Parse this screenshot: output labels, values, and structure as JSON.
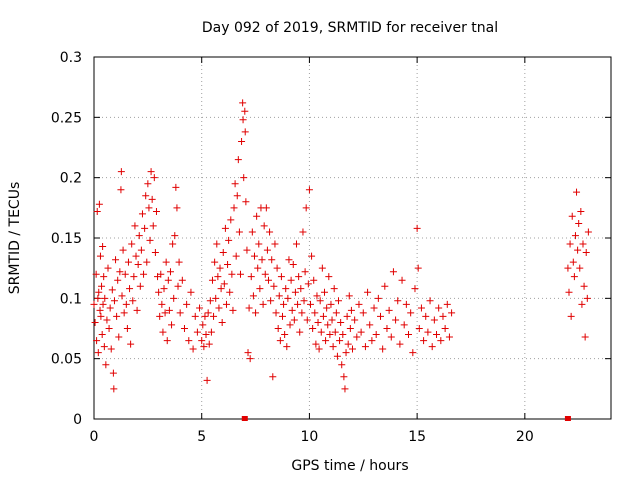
{
  "chart_data": {
    "type": "scatter",
    "title": "Day 092 of 2019, SRMTID for receiver tnal",
    "xlabel": "GPS time / hours",
    "ylabel": "SRMTID / TECUs",
    "xlim": [
      0,
      24
    ],
    "ylim": [
      0,
      0.3
    ],
    "xticks": [
      0,
      5,
      10,
      15,
      20
    ],
    "yticks": [
      0,
      0.05,
      0.1,
      0.15,
      0.2,
      0.25,
      0.3
    ],
    "xtick_labels": [
      "0",
      "5",
      "10",
      "15",
      "20"
    ],
    "ytick_labels": [
      "0",
      "0.05",
      "0.1",
      "0.15",
      "0.2",
      "0.25",
      "0.3"
    ],
    "grid": true,
    "marker": "+",
    "color": "#e00000",
    "series": [
      {
        "points": [
          [
            0.0,
            0.095
          ],
          [
            0.05,
            0.08
          ],
          [
            0.1,
            0.12
          ],
          [
            0.12,
            0.065
          ],
          [
            0.15,
            0.172
          ],
          [
            0.18,
            0.1
          ],
          [
            0.2,
            0.055
          ],
          [
            0.22,
            0.105
          ],
          [
            0.25,
            0.178
          ],
          [
            0.28,
            0.09
          ],
          [
            0.3,
            0.135
          ],
          [
            0.32,
            0.085
          ],
          [
            0.35,
            0.11
          ],
          [
            0.38,
            0.07
          ],
          [
            0.4,
            0.143
          ],
          [
            0.42,
            0.095
          ],
          [
            0.45,
            0.118
          ],
          [
            0.48,
            0.06
          ],
          [
            0.5,
            0.1
          ],
          [
            0.55,
            0.045
          ],
          [
            0.6,
            0.082
          ],
          [
            0.65,
            0.125
          ],
          [
            0.7,
            0.075
          ],
          [
            0.75,
            0.092
          ],
          [
            0.8,
            0.058
          ],
          [
            0.85,
            0.107
          ],
          [
            0.9,
            0.038
          ],
          [
            0.92,
            0.025
          ],
          [
            0.95,
            0.098
          ],
          [
            1.0,
            0.132
          ],
          [
            1.05,
            0.085
          ],
          [
            1.1,
            0.115
          ],
          [
            1.15,
            0.068
          ],
          [
            1.2,
            0.122
          ],
          [
            1.25,
            0.19
          ],
          [
            1.27,
            0.205
          ],
          [
            1.3,
            0.102
          ],
          [
            1.35,
            0.14
          ],
          [
            1.4,
            0.088
          ],
          [
            1.45,
            0.12
          ],
          [
            1.5,
            0.095
          ],
          [
            1.55,
            0.075
          ],
          [
            1.6,
            0.13
          ],
          [
            1.65,
            0.108
          ],
          [
            1.7,
            0.062
          ],
          [
            1.75,
            0.145
          ],
          [
            1.8,
            0.098
          ],
          [
            1.85,
            0.118
          ],
          [
            1.9,
            0.16
          ],
          [
            1.95,
            0.135
          ],
          [
            2.0,
            0.09
          ],
          [
            2.05,
            0.128
          ],
          [
            2.1,
            0.152
          ],
          [
            2.15,
            0.11
          ],
          [
            2.2,
            0.14
          ],
          [
            2.25,
            0.17
          ],
          [
            2.3,
            0.12
          ],
          [
            2.35,
            0.158
          ],
          [
            2.4,
            0.185
          ],
          [
            2.45,
            0.13
          ],
          [
            2.5,
            0.195
          ],
          [
            2.55,
            0.175
          ],
          [
            2.6,
            0.148
          ],
          [
            2.65,
            0.205
          ],
          [
            2.7,
            0.182
          ],
          [
            2.75,
            0.16
          ],
          [
            2.8,
            0.2
          ],
          [
            2.85,
            0.138
          ],
          [
            2.9,
            0.172
          ],
          [
            2.95,
            0.118
          ],
          [
            3.0,
            0.105
          ],
          [
            3.05,
            0.085
          ],
          [
            3.1,
            0.12
          ],
          [
            3.15,
            0.095
          ],
          [
            3.2,
            0.072
          ],
          [
            3.25,
            0.108
          ],
          [
            3.3,
            0.088
          ],
          [
            3.35,
            0.13
          ],
          [
            3.4,
            0.065
          ],
          [
            3.45,
            0.115
          ],
          [
            3.5,
            0.09
          ],
          [
            3.55,
            0.122
          ],
          [
            3.6,
            0.078
          ],
          [
            3.65,
            0.145
          ],
          [
            3.7,
            0.1
          ],
          [
            3.75,
            0.152
          ],
          [
            3.8,
            0.192
          ],
          [
            3.85,
            0.175
          ],
          [
            3.9,
            0.11
          ],
          [
            3.95,
            0.13
          ],
          [
            4.0,
            0.088
          ],
          [
            4.1,
            0.115
          ],
          [
            4.2,
            0.075
          ],
          [
            4.3,
            0.095
          ],
          [
            4.4,
            0.065
          ],
          [
            4.5,
            0.105
          ],
          [
            4.6,
            0.058
          ],
          [
            4.7,
            0.085
          ],
          [
            4.8,
            0.072
          ],
          [
            4.9,
            0.092
          ],
          [
            5.0,
            0.065
          ],
          [
            5.05,
            0.078
          ],
          [
            5.1,
            0.06
          ],
          [
            5.15,
            0.085
          ],
          [
            5.2,
            0.07
          ],
          [
            5.25,
            0.032
          ],
          [
            5.3,
            0.088
          ],
          [
            5.35,
            0.062
          ],
          [
            5.4,
            0.098
          ],
          [
            5.45,
            0.072
          ],
          [
            5.5,
            0.115
          ],
          [
            5.55,
            0.085
          ],
          [
            5.6,
            0.13
          ],
          [
            5.65,
            0.1
          ],
          [
            5.7,
            0.145
          ],
          [
            5.75,
            0.118
          ],
          [
            5.8,
            0.092
          ],
          [
            5.85,
            0.125
          ],
          [
            5.9,
            0.108
          ],
          [
            5.95,
            0.08
          ],
          [
            6.0,
            0.138
          ],
          [
            6.05,
            0.112
          ],
          [
            6.1,
            0.158
          ],
          [
            6.15,
            0.095
          ],
          [
            6.2,
            0.128
          ],
          [
            6.25,
            0.148
          ],
          [
            6.3,
            0.105
          ],
          [
            6.35,
            0.165
          ],
          [
            6.4,
            0.12
          ],
          [
            6.45,
            0.09
          ],
          [
            6.5,
            0.175
          ],
          [
            6.55,
            0.195
          ],
          [
            6.6,
            0.135
          ],
          [
            6.65,
            0.185
          ],
          [
            6.7,
            0.215
          ],
          [
            6.75,
            0.155
          ],
          [
            6.8,
            0.12
          ],
          [
            6.85,
            0.23
          ],
          [
            6.9,
            0.262
          ],
          [
            6.92,
            0.248
          ],
          [
            6.95,
            0.2
          ],
          [
            7.0,
            0.255
          ],
          [
            7.02,
            0.238
          ],
          [
            7.05,
            0.18
          ],
          [
            7.1,
            0.14
          ],
          [
            7.15,
            0.055
          ],
          [
            7.2,
            0.092
          ],
          [
            7.25,
            0.05
          ],
          [
            7.3,
            0.118
          ],
          [
            7.35,
            0.155
          ],
          [
            7.4,
            0.102
          ],
          [
            7.45,
            0.135
          ],
          [
            7.5,
            0.088
          ],
          [
            7.55,
            0.168
          ],
          [
            7.6,
            0.125
          ],
          [
            7.65,
            0.145
          ],
          [
            7.7,
            0.108
          ],
          [
            7.75,
            0.175
          ],
          [
            7.8,
            0.132
          ],
          [
            7.85,
            0.095
          ],
          [
            7.9,
            0.16
          ],
          [
            7.95,
            0.12
          ],
          [
            8.0,
            0.175
          ],
          [
            8.05,
            0.14
          ],
          [
            8.1,
            0.115
          ],
          [
            8.15,
            0.155
          ],
          [
            8.2,
            0.098
          ],
          [
            8.25,
            0.132
          ],
          [
            8.3,
            0.035
          ],
          [
            8.35,
            0.11
          ],
          [
            8.4,
            0.145
          ],
          [
            8.45,
            0.088
          ],
          [
            8.5,
            0.125
          ],
          [
            8.55,
            0.075
          ],
          [
            8.6,
            0.102
          ],
          [
            8.65,
            0.065
          ],
          [
            8.7,
            0.118
          ],
          [
            8.75,
            0.085
          ],
          [
            8.8,
            0.095
          ],
          [
            8.85,
            0.07
          ],
          [
            8.9,
            0.108
          ],
          [
            8.95,
            0.06
          ],
          [
            9.0,
            0.1
          ],
          [
            9.05,
            0.132
          ],
          [
            9.1,
            0.078
          ],
          [
            9.15,
            0.115
          ],
          [
            9.2,
            0.09
          ],
          [
            9.25,
            0.128
          ],
          [
            9.3,
            0.082
          ],
          [
            9.35,
            0.105
          ],
          [
            9.4,
            0.145
          ],
          [
            9.45,
            0.095
          ],
          [
            9.5,
            0.118
          ],
          [
            9.55,
            0.072
          ],
          [
            9.6,
            0.108
          ],
          [
            9.65,
            0.088
          ],
          [
            9.7,
            0.155
          ],
          [
            9.75,
            0.098
          ],
          [
            9.8,
            0.122
          ],
          [
            9.85,
            0.175
          ],
          [
            9.9,
            0.082
          ],
          [
            9.95,
            0.112
          ],
          [
            10.0,
            0.19
          ],
          [
            10.05,
            0.095
          ],
          [
            10.1,
            0.135
          ],
          [
            10.15,
            0.075
          ],
          [
            10.2,
            0.115
          ],
          [
            10.25,
            0.088
          ],
          [
            10.3,
            0.062
          ],
          [
            10.35,
            0.102
          ],
          [
            10.4,
            0.08
          ],
          [
            10.45,
            0.058
          ],
          [
            10.5,
            0.098
          ],
          [
            10.55,
            0.072
          ],
          [
            10.6,
            0.125
          ],
          [
            10.65,
            0.085
          ],
          [
            10.7,
            0.105
          ],
          [
            10.75,
            0.065
          ],
          [
            10.8,
            0.092
          ],
          [
            10.85,
            0.078
          ],
          [
            10.9,
            0.118
          ],
          [
            10.95,
            0.07
          ],
          [
            11.0,
            0.095
          ],
          [
            11.05,
            0.082
          ],
          [
            11.1,
            0.06
          ],
          [
            11.15,
            0.108
          ],
          [
            11.2,
            0.072
          ],
          [
            11.25,
            0.088
          ],
          [
            11.3,
            0.052
          ],
          [
            11.35,
            0.098
          ],
          [
            11.4,
            0.065
          ],
          [
            11.45,
            0.08
          ],
          [
            11.5,
            0.045
          ],
          [
            11.55,
            0.07
          ],
          [
            11.6,
            0.035
          ],
          [
            11.65,
            0.025
          ],
          [
            11.7,
            0.055
          ],
          [
            11.75,
            0.085
          ],
          [
            11.8,
            0.062
          ],
          [
            11.85,
            0.102
          ],
          [
            11.9,
            0.075
          ],
          [
            11.95,
            0.09
          ],
          [
            12.0,
            0.058
          ],
          [
            12.1,
            0.082
          ],
          [
            12.2,
            0.068
          ],
          [
            12.3,
            0.095
          ],
          [
            12.4,
            0.072
          ],
          [
            12.5,
            0.088
          ],
          [
            12.6,
            0.06
          ],
          [
            12.7,
            0.105
          ],
          [
            12.8,
            0.078
          ],
          [
            12.9,
            0.065
          ],
          [
            13.0,
            0.092
          ],
          [
            13.1,
            0.07
          ],
          [
            13.2,
            0.1
          ],
          [
            13.3,
            0.085
          ],
          [
            13.4,
            0.058
          ],
          [
            13.5,
            0.11
          ],
          [
            13.6,
            0.075
          ],
          [
            13.7,
            0.09
          ],
          [
            13.8,
            0.068
          ],
          [
            13.9,
            0.122
          ],
          [
            14.0,
            0.082
          ],
          [
            14.1,
            0.098
          ],
          [
            14.2,
            0.062
          ],
          [
            14.3,
            0.115
          ],
          [
            14.4,
            0.078
          ],
          [
            14.5,
            0.095
          ],
          [
            14.6,
            0.07
          ],
          [
            14.7,
            0.088
          ],
          [
            14.8,
            0.055
          ],
          [
            14.9,
            0.108
          ],
          [
            15.0,
            0.158
          ],
          [
            15.05,
            0.125
          ],
          [
            15.1,
            0.075
          ],
          [
            15.2,
            0.092
          ],
          [
            15.3,
            0.065
          ],
          [
            15.4,
            0.085
          ],
          [
            15.5,
            0.072
          ],
          [
            15.6,
            0.098
          ],
          [
            15.7,
            0.06
          ],
          [
            15.8,
            0.082
          ],
          [
            15.9,
            0.07
          ],
          [
            16.0,
            0.092
          ],
          [
            16.1,
            0.065
          ],
          [
            16.2,
            0.085
          ],
          [
            16.3,
            0.075
          ],
          [
            16.4,
            0.095
          ],
          [
            16.5,
            0.068
          ],
          [
            16.6,
            0.088
          ],
          [
            22.0,
            0.125
          ],
          [
            22.05,
            0.105
          ],
          [
            22.1,
            0.145
          ],
          [
            22.15,
            0.085
          ],
          [
            22.2,
            0.168
          ],
          [
            22.25,
            0.13
          ],
          [
            22.3,
            0.118
          ],
          [
            22.35,
            0.152
          ],
          [
            22.4,
            0.188
          ],
          [
            22.45,
            0.14
          ],
          [
            22.5,
            0.162
          ],
          [
            22.55,
            0.125
          ],
          [
            22.6,
            0.172
          ],
          [
            22.65,
            0.095
          ],
          [
            22.7,
            0.145
          ],
          [
            22.75,
            0.11
          ],
          [
            22.8,
            0.068
          ],
          [
            22.85,
            0.138
          ],
          [
            22.9,
            0.1
          ],
          [
            22.95,
            0.155
          ]
        ]
      }
    ],
    "zero_markers": [
      7.0,
      22.0
    ]
  }
}
